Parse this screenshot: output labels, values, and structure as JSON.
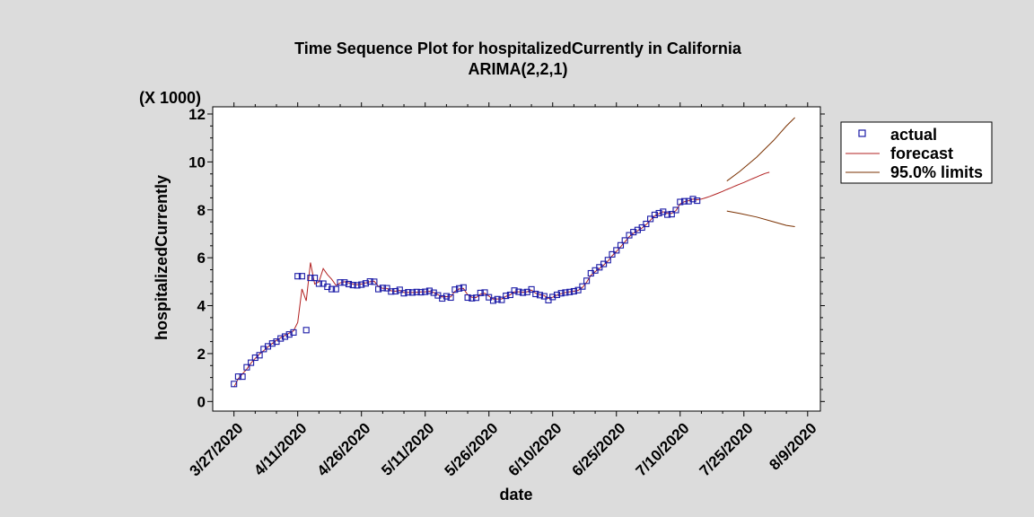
{
  "chart_data": {
    "type": "line",
    "title": "Time Sequence Plot for hospitalizedCurrently in California",
    "subtitle": "ARIMA(2,2,1)",
    "xlabel": "date",
    "ylabel": "hospitalizedCurrently",
    "y_multiplier_label": "(X 1000)",
    "xlim": [
      "2020-03-22",
      "2020-08-12"
    ],
    "ylim": [
      -0.4,
      12.3
    ],
    "x_ticks": [
      "3/27/2020",
      "4/11/2020",
      "4/26/2020",
      "5/11/2020",
      "5/26/2020",
      "6/10/2020",
      "6/25/2020",
      "7/10/2020",
      "7/25/2020",
      "8/9/2020"
    ],
    "y_ticks": [
      "0",
      "2",
      "4",
      "6",
      "8",
      "10",
      "12"
    ],
    "grid": false,
    "legend_position": "right",
    "series": [
      {
        "name": "actual",
        "style": "square-markers",
        "color": "#1a1aa6",
        "start_date": "2020-03-27",
        "values": [
          0.73,
          1.04,
          1.04,
          1.43,
          1.62,
          1.83,
          1.93,
          2.19,
          2.3,
          2.42,
          2.5,
          2.63,
          2.71,
          2.8,
          2.88,
          5.23,
          5.23,
          2.98,
          5.16,
          5.16,
          4.92,
          4.92,
          4.79,
          4.69,
          4.69,
          4.97,
          4.97,
          4.9,
          4.86,
          4.85,
          4.88,
          4.93,
          5.01,
          5.0,
          4.69,
          4.74,
          4.73,
          4.59,
          4.6,
          4.66,
          4.52,
          4.56,
          4.55,
          4.57,
          4.56,
          4.58,
          4.62,
          4.54,
          4.43,
          4.3,
          4.39,
          4.34,
          4.67,
          4.72,
          4.76,
          4.34,
          4.31,
          4.33,
          4.53,
          4.55,
          4.35,
          4.21,
          4.27,
          4.24,
          4.41,
          4.45,
          4.63,
          4.58,
          4.54,
          4.57,
          4.68,
          4.49,
          4.44,
          4.39,
          4.23,
          4.36,
          4.45,
          4.52,
          4.55,
          4.57,
          4.6,
          4.65,
          4.8,
          5.04,
          5.35,
          5.47,
          5.6,
          5.74,
          5.9,
          6.14,
          6.31,
          6.52,
          6.72,
          6.94,
          7.07,
          7.16,
          7.26,
          7.41,
          7.62,
          7.79,
          7.86,
          7.92,
          7.8,
          7.82,
          7.99,
          8.33,
          8.36,
          8.36,
          8.45,
          8.38
        ]
      },
      {
        "name": "forecast",
        "style": "line",
        "color": "#b22222",
        "start_date": "2020-03-27",
        "values": [
          0.6,
          0.95,
          1.15,
          1.35,
          1.6,
          1.8,
          1.98,
          2.12,
          2.28,
          2.42,
          2.55,
          2.66,
          2.76,
          2.85,
          2.95,
          3.3,
          4.7,
          4.2,
          5.8,
          4.9,
          5.0,
          5.55,
          5.3,
          5.1,
          4.85,
          4.95,
          5.0,
          4.95,
          4.9,
          4.87,
          4.9,
          4.95,
          5.0,
          5.02,
          4.8,
          4.72,
          4.72,
          4.62,
          4.6,
          4.64,
          4.55,
          4.55,
          4.55,
          4.56,
          4.57,
          4.58,
          4.6,
          4.55,
          4.46,
          4.36,
          4.38,
          4.36,
          4.6,
          4.7,
          4.72,
          4.45,
          4.35,
          4.34,
          4.48,
          4.52,
          4.4,
          4.27,
          4.28,
          4.28,
          4.39,
          4.45,
          4.58,
          4.58,
          4.56,
          4.58,
          4.65,
          4.52,
          4.46,
          4.42,
          4.3,
          4.35,
          4.44,
          4.5,
          4.55,
          4.58,
          4.6,
          4.64,
          4.76,
          4.98,
          5.27,
          5.42,
          5.55,
          5.7,
          5.86,
          6.08,
          6.26,
          6.46,
          6.66,
          6.88,
          7.02,
          7.13,
          7.24,
          7.38,
          7.57,
          7.75,
          7.84,
          7.92,
          7.85,
          7.85,
          7.96,
          8.25,
          8.34,
          8.38,
          8.45,
          8.42,
          8.45,
          8.5,
          8.56,
          8.63,
          8.7,
          8.77,
          8.85,
          8.92,
          9.0,
          9.07,
          9.14,
          9.22,
          9.3,
          9.37,
          9.45,
          9.52,
          9.57
        ]
      },
      {
        "name": "95.0% limits",
        "style": "line",
        "color": "#7a3000",
        "bounds": {
          "dates": [
            "2020-07-21",
            "2020-07-24",
            "2020-07-28",
            "2020-08-01",
            "2020-08-04",
            "2020-08-06"
          ],
          "upper": [
            9.2,
            9.6,
            10.2,
            10.9,
            11.5,
            11.85
          ],
          "lower": [
            7.95,
            7.85,
            7.7,
            7.5,
            7.35,
            7.3
          ]
        }
      }
    ]
  }
}
